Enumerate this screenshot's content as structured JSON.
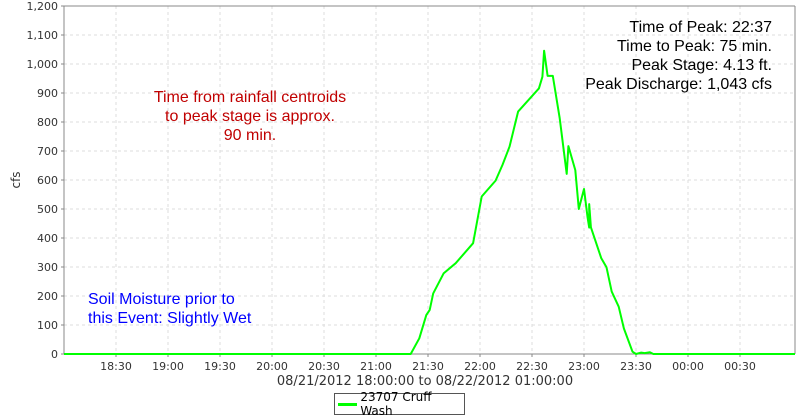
{
  "chart_data": {
    "type": "line",
    "xlabel": "08/21/2012 18:00:00 to 08/22/2012 01:00:00",
    "ylabel": "cfs",
    "xlim": [
      "18:00",
      "01:00"
    ],
    "ylim": [
      0,
      1200
    ],
    "grid": true,
    "legend_placement": "bottom",
    "x_ticks": [
      "18:30",
      "19:00",
      "19:30",
      "20:00",
      "20:30",
      "21:00",
      "21:30",
      "22:00",
      "22:30",
      "23:00",
      "23:30",
      "00:00",
      "00:30"
    ],
    "y_ticks": [
      "0",
      "100",
      "200",
      "300",
      "400",
      "500",
      "600",
      "700",
      "800",
      "900",
      "1,000",
      "1,100",
      "1,200"
    ],
    "series": [
      {
        "name": "23707 Cruff Wash",
        "color": "#00ff00",
        "x": [
          "18:00",
          "21:20",
          "21:25",
          "21:29",
          "21:31",
          "21:33",
          "21:39",
          "21:46",
          "21:56",
          "22:01",
          "22:09",
          "22:13",
          "22:17",
          "22:22",
          "22:34",
          "22:36",
          "22:37",
          "22:39",
          "22:42",
          "22:46",
          "22:50",
          "22:51",
          "22:55",
          "22:57",
          "23:00",
          "23:02",
          "23:03",
          "23:03",
          "23:04",
          "23:10",
          "23:13",
          "23:16",
          "23:20",
          "23:23",
          "23:28",
          "23:30",
          "23:33",
          "23:35",
          "23:38",
          "23:40",
          "01:00"
        ],
        "y": [
          0,
          0,
          54,
          134,
          152,
          209,
          278,
          313,
          382,
          543,
          598,
          652,
          715,
          836,
          916,
          956,
          1046,
          959,
          959,
          813,
          621,
          717,
          634,
          500,
          569,
          473,
          436,
          517,
          437,
          330,
          299,
          215,
          163,
          88,
          8,
          0,
          5,
          3,
          6,
          0,
          0
        ]
      }
    ],
    "annotations": {
      "peak": [
        "Time of Peak: 22:37",
        "Time to Peak: 75 min.",
        "Peak Stage: 4.13 ft.",
        "Peak Discharge: 1,043 cfs"
      ],
      "rainfall": [
        "Time from rainfall centroids",
        "to peak stage is approx.",
        "90 min."
      ],
      "soil": [
        "Soil Moisture prior to",
        "this Event: Slightly Wet"
      ]
    },
    "annotation_colors": {
      "rainfall": "#c00000",
      "soil": "#0000ff"
    }
  }
}
